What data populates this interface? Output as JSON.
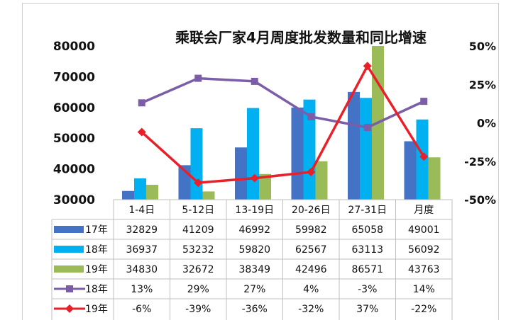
{
  "chart_data": {
    "type": "bar",
    "title": "乘联会厂家4月周度批发数量和同比增速",
    "categories": [
      "1-4日",
      "5-12日",
      "13-19日",
      "20-26日",
      "27-31日",
      "月度"
    ],
    "ylim": [
      30000,
      80000
    ],
    "y_ticks": [
      "80000",
      "70000",
      "60000",
      "50000",
      "40000",
      "30000"
    ],
    "y2lim": [
      -50,
      50
    ],
    "y2_ticks": [
      "50%",
      "25%",
      "0%",
      "-25%",
      "-50%"
    ],
    "bar_series": [
      {
        "name": "17年",
        "color": "#4472c4",
        "values": [
          32829,
          41209,
          46992,
          59982,
          65058,
          49001
        ],
        "labels": [
          "32829",
          "41209",
          "46992",
          "59982",
          "65058",
          "49001"
        ]
      },
      {
        "name": "18年",
        "color": "#00b0f0",
        "values": [
          36937,
          53232,
          59820,
          62567,
          63113,
          56092
        ],
        "labels": [
          "36937",
          "53232",
          "59820",
          "62567",
          "63113",
          "56092"
        ]
      },
      {
        "name": "19年",
        "color": "#9bbb59",
        "values": [
          34830,
          32672,
          38349,
          42496,
          86571,
          43763
        ],
        "labels": [
          "34830",
          "32672",
          "38349",
          "42496",
          "86571",
          "43763"
        ]
      }
    ],
    "line_series": [
      {
        "name": "18年",
        "color": "#7b5ea7",
        "marker": "square",
        "values": [
          13,
          29,
          27,
          4,
          -3,
          14
        ],
        "labels": [
          "13%",
          "29%",
          "27%",
          "4%",
          "-3%",
          "14%"
        ]
      },
      {
        "name": "19年",
        "color": "#e8202a",
        "marker": "diamond",
        "values": [
          -6,
          -39,
          -36,
          -32,
          37,
          -22
        ],
        "labels": [
          "-6%",
          "-39%",
          "-36%",
          "-32%",
          "37%",
          "-22%"
        ]
      }
    ],
    "grid": false,
    "legend": "data-table"
  }
}
